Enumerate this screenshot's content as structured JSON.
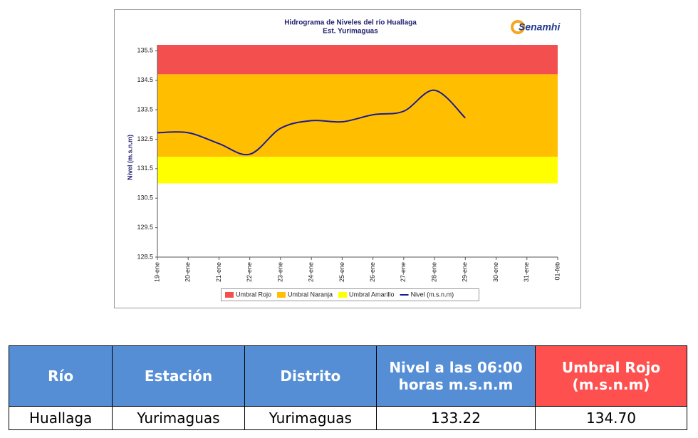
{
  "chart_data": {
    "type": "line",
    "title": "Hidrograma de Niveles del río Huallaga",
    "subtitle": "Est. Yurimaguas",
    "logo": "Senamhi",
    "y_label": "Nivel (m.s.n.m)",
    "categories": [
      "19-ene",
      "20-ene",
      "21-ene",
      "22-ene",
      "23-ene",
      "24-ene",
      "25-ene",
      "26-ene",
      "27-ene",
      "28-ene",
      "29-ene",
      "30-ene",
      "31-ene",
      "01-feb"
    ],
    "ylim": [
      128.5,
      135.7
    ],
    "yticks": [
      128.5,
      129.5,
      130.5,
      131.5,
      132.5,
      133.5,
      134.5,
      135.5
    ],
    "grid": false,
    "thresholds": [
      {
        "name": "Umbral Rojo",
        "color": "#f44f4f",
        "value": 134.7
      },
      {
        "name": "Umbral Naranja",
        "color": "#ffbf00",
        "value": 131.9
      },
      {
        "name": "Umbral Amarillo",
        "color": "#ffff00",
        "value": 131.0
      }
    ],
    "series": [
      {
        "name": "Nivel (m.s.n.m)",
        "color": "#1a1a99",
        "values": [
          132.72,
          132.72,
          132.35,
          131.99,
          132.87,
          133.13,
          133.09,
          133.33,
          133.45,
          134.16,
          133.22,
          null,
          null,
          null
        ]
      }
    ]
  },
  "table": {
    "header": [
      "Río",
      "Estación",
      "Distrito",
      "Nivel a las 06:00 horas m.s.n.m",
      "Umbral Rojo (m.s.n.m)"
    ],
    "rows": [
      [
        "Huallaga",
        "Yurimaguas",
        "Yurimaguas",
        "133.22",
        "134.70"
      ]
    ]
  }
}
